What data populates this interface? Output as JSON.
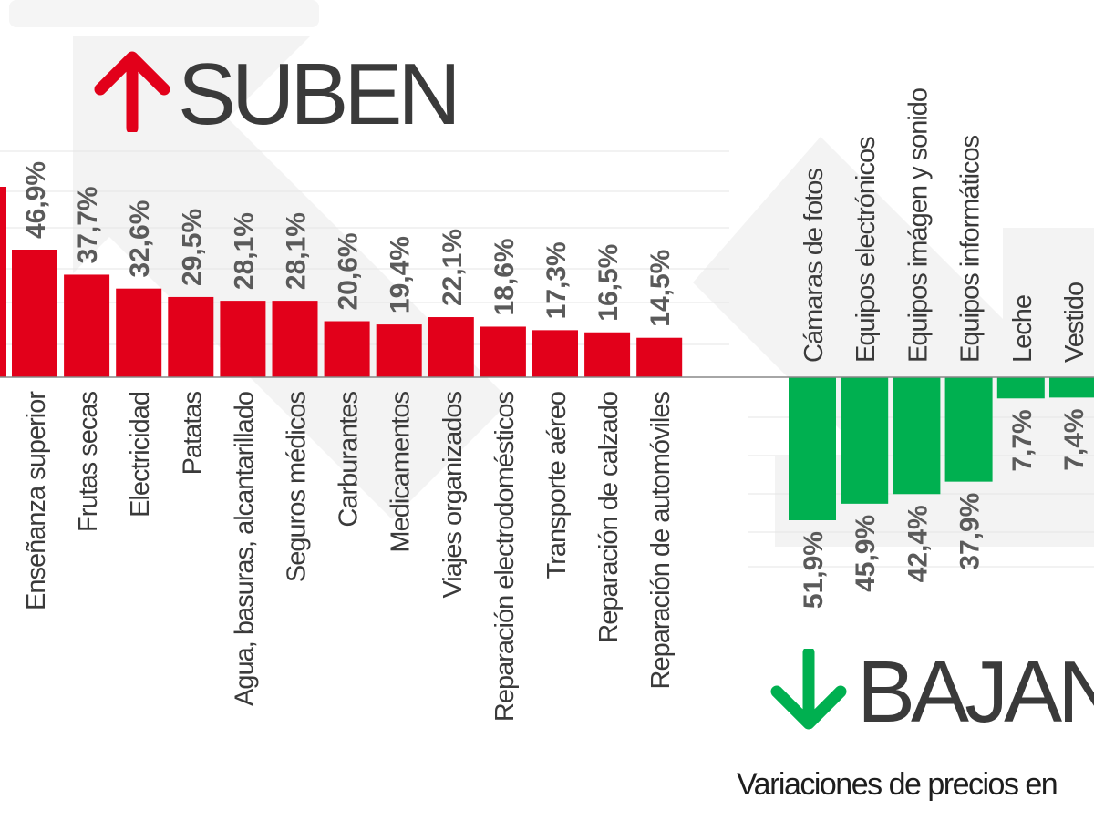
{
  "headings": {
    "up": "SUBEN",
    "down": "BAJAN"
  },
  "icons": {
    "up": "arrow-up-icon",
    "down": "arrow-down-icon"
  },
  "subtitle": "Variaciones de precios en",
  "colors": {
    "up": "#e2001a",
    "down": "#00b050",
    "value_label": "#5a5a5a",
    "category_label": "#3a3a3a",
    "grid": "#e4e4e4",
    "axis": "#888888",
    "background_arrow": "#f1f1f1"
  },
  "chart_data": [
    {
      "type": "bar",
      "direction": "up",
      "categories": [
        "Enseñanza superior",
        "Frutas secas",
        "Electricidad",
        "Patatas",
        "Agua, basuras, alcantarillado",
        "Seguros médicos",
        "Carburantes",
        "Medicamentos",
        "Viajes organizados",
        "Reparación electrodomésticos",
        "Transporte aéreo",
        "Reparación de calzado",
        "Reparación de automóviles"
      ],
      "values": [
        46.9,
        37.7,
        32.6,
        29.5,
        28.1,
        28.1,
        20.6,
        19.4,
        22.1,
        18.6,
        17.3,
        16.5,
        14.5
      ],
      "value_labels": [
        "46,9%",
        "37,7%",
        "32,6%",
        "29,5%",
        "28,1%",
        "28,1%",
        "20,6%",
        "19,4%",
        "22,1%",
        "18,6%",
        "17,3%",
        "16,5%",
        "14,5%"
      ],
      "partial_bar_left_edge": 70,
      "grid": true
    },
    {
      "type": "bar",
      "direction": "down",
      "categories": [
        "Cámaras de fotos",
        "Equipos electrónicos",
        "Equipos imágen y sonido",
        "Equipos informáticos",
        "Leche",
        "Vestido"
      ],
      "values": [
        -51.9,
        -45.9,
        -42.4,
        -37.9,
        -7.7,
        -7.4
      ],
      "value_labels": [
        "51,9%",
        "45,9%",
        "42,4%",
        "37,9%",
        "7,7%",
        "7,4%"
      ],
      "grid": true
    }
  ]
}
